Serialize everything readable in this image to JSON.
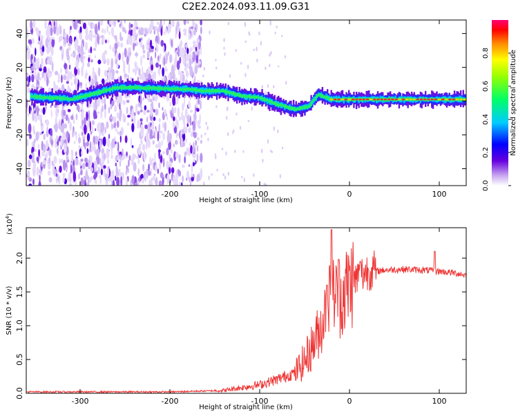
{
  "title": "C2E2.2024.093.11.09.G31",
  "chart_data": [
    {
      "type": "heatmap",
      "xlabel": "Height of straight line (km)",
      "ylabel": "Frequency (Hz)",
      "xlim": [
        -360,
        130
      ],
      "ylim": [
        -50,
        48
      ],
      "x_ticks": [
        -300,
        -200,
        -100,
        0,
        100
      ],
      "x_tick_labels": [
        "-300",
        "-200",
        "-100",
        "0",
        "100"
      ],
      "y_ticks": [
        -40,
        -20,
        0,
        20,
        40
      ],
      "y_tick_labels": [
        "-40",
        "-20",
        "0",
        "20",
        "40"
      ],
      "colorbar": {
        "label": "Normalized spectral amplitude",
        "range": [
          0,
          1
        ],
        "ticks": [
          0.0,
          0.2,
          0.4,
          0.6,
          0.8
        ],
        "tick_labels": [
          "0.0",
          "0.2",
          "0.4",
          "0.6",
          "0.8"
        ]
      },
      "ridge": {
        "x": [
          -355,
          -340,
          -325,
          -310,
          -260,
          -240,
          -180,
          -160,
          -140,
          -120,
          -100,
          -80,
          -60,
          -45,
          -35,
          -20,
          0,
          50,
          100,
          130
        ],
        "y": [
          3,
          2,
          2,
          1,
          8,
          8,
          7,
          6,
          6,
          3,
          2,
          -2,
          -5,
          -3,
          4,
          1,
          1,
          1,
          1,
          1
        ]
      },
      "noise_region_x": [
        -360,
        -165
      ]
    },
    {
      "type": "line",
      "xlabel": "Height of straight line (km)",
      "ylabel": "SNR (10 * v/v)",
      "y_multiplier": "(x10",
      "y_multiplier_exp": "4",
      "multiplier_suffix": ")",
      "xlim": [
        -360,
        130
      ],
      "ylim": [
        0,
        2.45
      ],
      "x_ticks": [
        -300,
        -200,
        -100,
        0,
        100
      ],
      "x_tick_labels": [
        "-300",
        "-200",
        "-100",
        "0",
        "100"
      ],
      "y_ticks": [
        0.0,
        0.5,
        1.0,
        1.5,
        2.0
      ],
      "y_tick_labels": [
        "0.0",
        "0.5",
        "1.0",
        "1.5",
        "2.0"
      ],
      "color": "#ee3333",
      "envelope": {
        "x": [
          -360,
          -200,
          -140,
          -120,
          -100,
          -80,
          -60,
          -50,
          -40,
          -30,
          -25,
          -20,
          -15,
          -10,
          0,
          10,
          20,
          40,
          60,
          80,
          100,
          120,
          130
        ],
        "y": [
          0.02,
          0.02,
          0.04,
          0.08,
          0.12,
          0.2,
          0.3,
          0.45,
          0.7,
          1.0,
          1.3,
          1.45,
          1.4,
          1.35,
          1.55,
          1.7,
          1.78,
          1.82,
          1.83,
          1.82,
          1.8,
          1.77,
          1.74
        ]
      },
      "spikes": [
        {
          "x": -20,
          "y": 2.42
        },
        {
          "x": 12,
          "y": 1.95
        },
        {
          "x": 95,
          "y": 2.1
        },
        {
          "x": -25,
          "y": 1.6
        },
        {
          "x": -12,
          "y": 1.98
        }
      ]
    }
  ]
}
